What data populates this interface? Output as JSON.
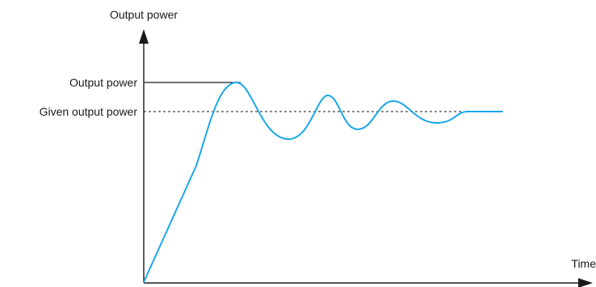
{
  "diagram": {
    "y_axis_title": "Output power",
    "x_axis_title": "Time",
    "peak_label": "Output power",
    "setpoint_label": "Given output power",
    "curve_color": "#1aa7e8",
    "axis_color": "#1a1a1a"
  }
}
